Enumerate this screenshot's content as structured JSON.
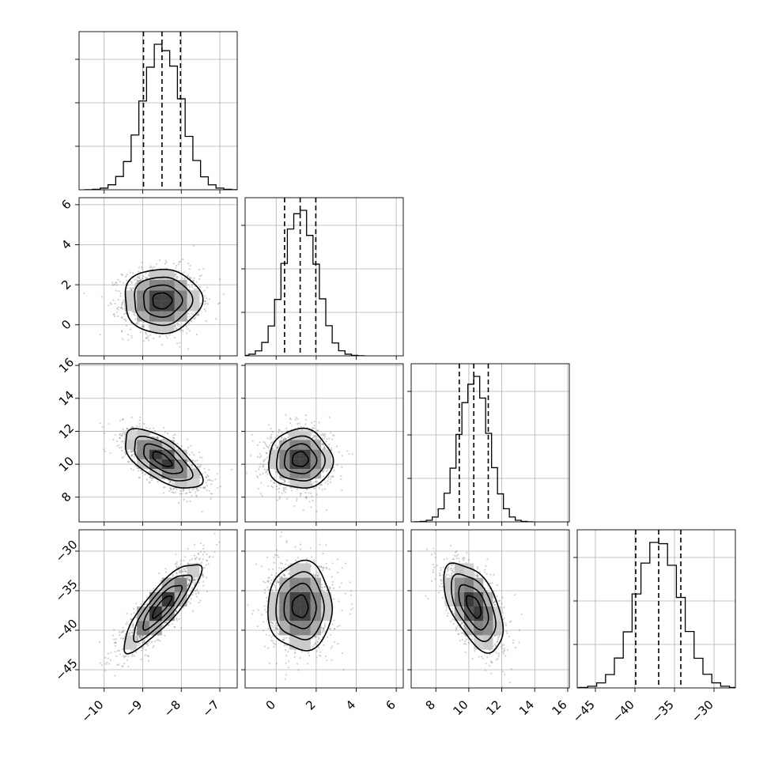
{
  "chart_data": {
    "type": "corner",
    "parameters": [
      {
        "ticks": [
          -10,
          -9,
          -8,
          -7
        ],
        "range": [
          -10.65,
          -6.55
        ],
        "mean": -8.5,
        "sd": 0.5,
        "quantiles": [
          -8.98,
          -8.5,
          -8.02
        ],
        "hist_peak": 0.36
      },
      {
        "ticks": [
          0,
          2,
          4,
          6
        ],
        "range": [
          -1.55,
          6.35
        ],
        "mean": 1.2,
        "sd": 0.8,
        "quantiles": [
          0.42,
          1.2,
          1.98
        ],
        "hist_peak": 0.68
      },
      {
        "ticks": [
          8,
          10,
          12,
          14,
          16
        ],
        "range": [
          6.5,
          16.1
        ],
        "mean": 10.3,
        "sd": 0.9,
        "quantiles": [
          9.42,
          10.3,
          11.18
        ],
        "hist_peak": 0.59
      },
      {
        "ticks": [
          -45,
          -40,
          -35,
          -30
        ],
        "range": [
          -47.3,
          -27.3
        ],
        "mean": -37.0,
        "sd": 2.8,
        "quantiles": [
          -39.9,
          -37.0,
          -34.2
        ],
        "hist_peak": 0.24
      }
    ],
    "correlations": [
      [
        1.0,
        0.0,
        -0.65,
        0.85
      ],
      [
        0.0,
        1.0,
        0.0,
        0.0
      ],
      [
        -0.65,
        0.0,
        1.0,
        -0.55
      ],
      [
        0.85,
        0.0,
        -0.55,
        1.0
      ]
    ],
    "contour_levels_sigma": [
      0.5,
      1.0,
      1.5,
      2.0
    ],
    "histogram_bins": 20,
    "samples_per_panel": 1400,
    "grid": true,
    "colors": {
      "points": "#555555",
      "density": "#000000",
      "lines": "#000000",
      "grid": "#b0b0b0"
    }
  }
}
